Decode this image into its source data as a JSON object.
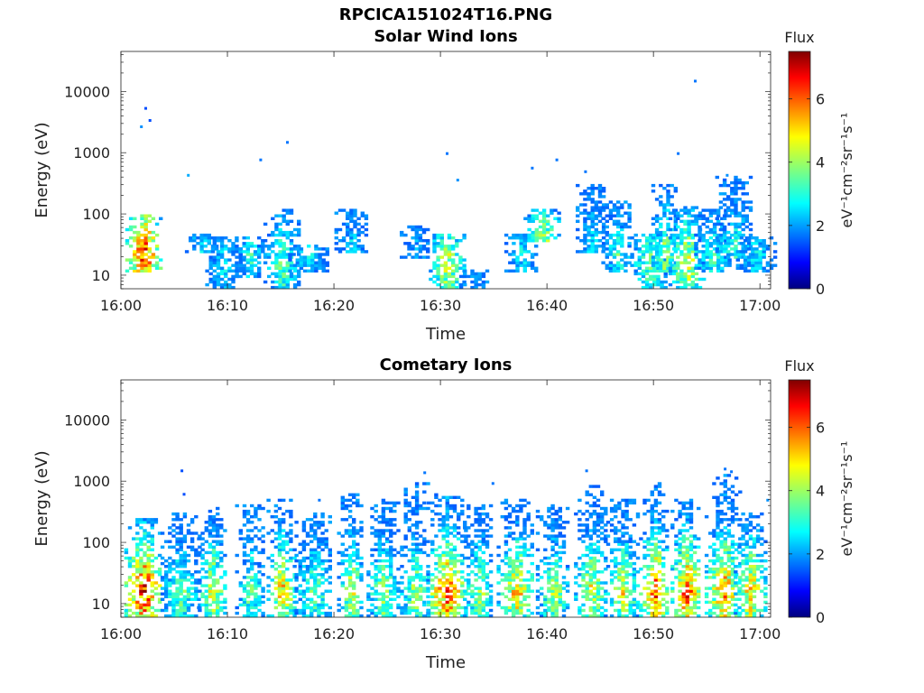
{
  "figure_title": "RPCICA151024T16.PNG",
  "chart_data": [
    {
      "type": "heatmap",
      "title": "Solar Wind Ions",
      "xlabel": "Time",
      "ylabel": "Energy (eV)",
      "x_ticks": [
        "16:00",
        "16:10",
        "16:20",
        "16:30",
        "16:40",
        "16:50",
        "17:00"
      ],
      "y_ticks": [
        "10",
        "100",
        "1000",
        "10000"
      ],
      "xlim_minutes": [
        0,
        61
      ],
      "ylim_eV": [
        6,
        45000
      ],
      "y_scale": "log",
      "colorbar": {
        "title": "Flux",
        "label": "eV⁻¹cm⁻²sr⁻¹s⁻¹",
        "ticks": [
          "0",
          "2",
          "4",
          "6"
        ],
        "range": [
          0,
          7.5
        ]
      },
      "clusters": [
        {
          "t": 2.0,
          "e_lo": 12,
          "e_hi": 90,
          "peak": 6.8
        },
        {
          "t": 7.5,
          "e_lo": 25,
          "e_hi": 45,
          "peak": 3.0
        },
        {
          "t": 9.5,
          "e_lo": 6,
          "e_hi": 40,
          "peak": 3.0
        },
        {
          "t": 12.0,
          "e_lo": 10,
          "e_hi": 40,
          "peak": 3.5
        },
        {
          "t": 15.0,
          "e_lo": 6,
          "e_hi": 120,
          "peak": 4.0
        },
        {
          "t": 17.5,
          "e_lo": 12,
          "e_hi": 30,
          "peak": 3.0
        },
        {
          "t": 21.5,
          "e_lo": 25,
          "e_hi": 110,
          "peak": 2.8
        },
        {
          "t": 27.5,
          "e_lo": 20,
          "e_hi": 60,
          "peak": 2.5
        },
        {
          "t": 30.5,
          "e_lo": 6,
          "e_hi": 45,
          "peak": 4.8
        },
        {
          "t": 33.0,
          "e_lo": 6,
          "e_hi": 12,
          "peak": 2.5
        },
        {
          "t": 37.5,
          "e_lo": 12,
          "e_hi": 45,
          "peak": 3.0
        },
        {
          "t": 39.5,
          "e_lo": 35,
          "e_hi": 120,
          "peak": 4.5
        },
        {
          "t": 44.0,
          "e_lo": 25,
          "e_hi": 300,
          "peak": 3.0
        },
        {
          "t": 46.5,
          "e_lo": 12,
          "e_hi": 150,
          "peak": 3.5
        },
        {
          "t": 49.5,
          "e_lo": 6,
          "e_hi": 45,
          "peak": 4.0
        },
        {
          "t": 51.0,
          "e_lo": 12,
          "e_hi": 300,
          "peak": 4.5
        },
        {
          "t": 53.0,
          "e_lo": 6,
          "e_hi": 130,
          "peak": 5.0
        },
        {
          "t": 55.5,
          "e_lo": 12,
          "e_hi": 110,
          "peak": 3.5
        },
        {
          "t": 57.5,
          "e_lo": 20,
          "e_hi": 400,
          "peak": 3.5
        },
        {
          "t": 59.5,
          "e_lo": 12,
          "e_hi": 40,
          "peak": 3.0
        }
      ],
      "sparse_points": [
        {
          "t": 1.8,
          "e": 2600,
          "v": 2.0
        },
        {
          "t": 2.2,
          "e": 5200,
          "v": 1.5
        },
        {
          "t": 2.6,
          "e": 3300,
          "v": 1.5
        },
        {
          "t": 6.2,
          "e": 420,
          "v": 2.2
        },
        {
          "t": 13.0,
          "e": 750,
          "v": 1.8
        },
        {
          "t": 15.5,
          "e": 1450,
          "v": 1.8
        },
        {
          "t": 30.5,
          "e": 950,
          "v": 1.8
        },
        {
          "t": 31.5,
          "e": 350,
          "v": 2.0
        },
        {
          "t": 38.5,
          "e": 550,
          "v": 1.8
        },
        {
          "t": 40.8,
          "e": 750,
          "v": 1.8
        },
        {
          "t": 43.5,
          "e": 480,
          "v": 1.8
        },
        {
          "t": 52.2,
          "e": 950,
          "v": 1.8
        },
        {
          "t": 53.8,
          "e": 14500,
          "v": 1.8
        },
        {
          "t": 56.8,
          "e": 420,
          "v": 2.0
        }
      ]
    },
    {
      "type": "heatmap",
      "title": "Cometary Ions",
      "xlabel": "Time",
      "ylabel": "Energy (eV)",
      "x_ticks": [
        "16:00",
        "16:10",
        "16:20",
        "16:30",
        "16:40",
        "16:50",
        "17:00"
      ],
      "y_ticks": [
        "10",
        "100",
        "1000",
        "10000"
      ],
      "xlim_minutes": [
        0,
        61
      ],
      "ylim_eV": [
        6,
        45000
      ],
      "y_scale": "log",
      "colorbar": {
        "title": "Flux",
        "label": "eV⁻¹cm⁻²sr⁻¹s⁻¹",
        "ticks": [
          "0",
          "2",
          "4",
          "6"
        ],
        "range": [
          0,
          7.5
        ]
      },
      "clusters": [
        {
          "t": 2.0,
          "e_lo": 6,
          "e_hi": 250,
          "peak": 7.0
        },
        {
          "t": 5.5,
          "e_lo": 6,
          "e_hi": 300,
          "peak": 4.0
        },
        {
          "t": 8.5,
          "e_lo": 6,
          "e_hi": 350,
          "peak": 5.0
        },
        {
          "t": 12.0,
          "e_lo": 6,
          "e_hi": 400,
          "peak": 4.0
        },
        {
          "t": 15.0,
          "e_lo": 6,
          "e_hi": 500,
          "peak": 5.5
        },
        {
          "t": 18.0,
          "e_lo": 6,
          "e_hi": 300,
          "peak": 4.0
        },
        {
          "t": 21.5,
          "e_lo": 6,
          "e_hi": 600,
          "peak": 5.0
        },
        {
          "t": 24.5,
          "e_lo": 6,
          "e_hi": 500,
          "peak": 4.5
        },
        {
          "t": 27.5,
          "e_lo": 6,
          "e_hi": 900,
          "peak": 4.5
        },
        {
          "t": 30.5,
          "e_lo": 6,
          "e_hi": 600,
          "peak": 6.5
        },
        {
          "t": 33.5,
          "e_lo": 6,
          "e_hi": 400,
          "peak": 4.5
        },
        {
          "t": 37.0,
          "e_lo": 6,
          "e_hi": 500,
          "peak": 5.5
        },
        {
          "t": 40.5,
          "e_lo": 6,
          "e_hi": 400,
          "peak": 4.5
        },
        {
          "t": 44.0,
          "e_lo": 6,
          "e_hi": 800,
          "peak": 5.0
        },
        {
          "t": 47.0,
          "e_lo": 6,
          "e_hi": 500,
          "peak": 5.0
        },
        {
          "t": 50.0,
          "e_lo": 6,
          "e_hi": 900,
          "peak": 6.5
        },
        {
          "t": 53.0,
          "e_lo": 6,
          "e_hi": 500,
          "peak": 6.5
        },
        {
          "t": 56.5,
          "e_lo": 6,
          "e_hi": 1200,
          "peak": 6.0
        },
        {
          "t": 59.0,
          "e_lo": 6,
          "e_hi": 300,
          "peak": 5.5
        }
      ],
      "sparse_points": [
        {
          "t": 5.6,
          "e": 1450,
          "v": 1.5
        },
        {
          "t": 5.8,
          "e": 600,
          "v": 1.5
        },
        {
          "t": 18.5,
          "e": 480,
          "v": 1.8
        },
        {
          "t": 28.4,
          "e": 1350,
          "v": 1.8
        },
        {
          "t": 34.8,
          "e": 900,
          "v": 1.8
        },
        {
          "t": 43.6,
          "e": 1450,
          "v": 1.8
        },
        {
          "t": 56.6,
          "e": 1550,
          "v": 1.8
        },
        {
          "t": 57.2,
          "e": 1400,
          "v": 1.8
        },
        {
          "t": 60.6,
          "e": 480,
          "v": 2.0
        }
      ]
    }
  ]
}
